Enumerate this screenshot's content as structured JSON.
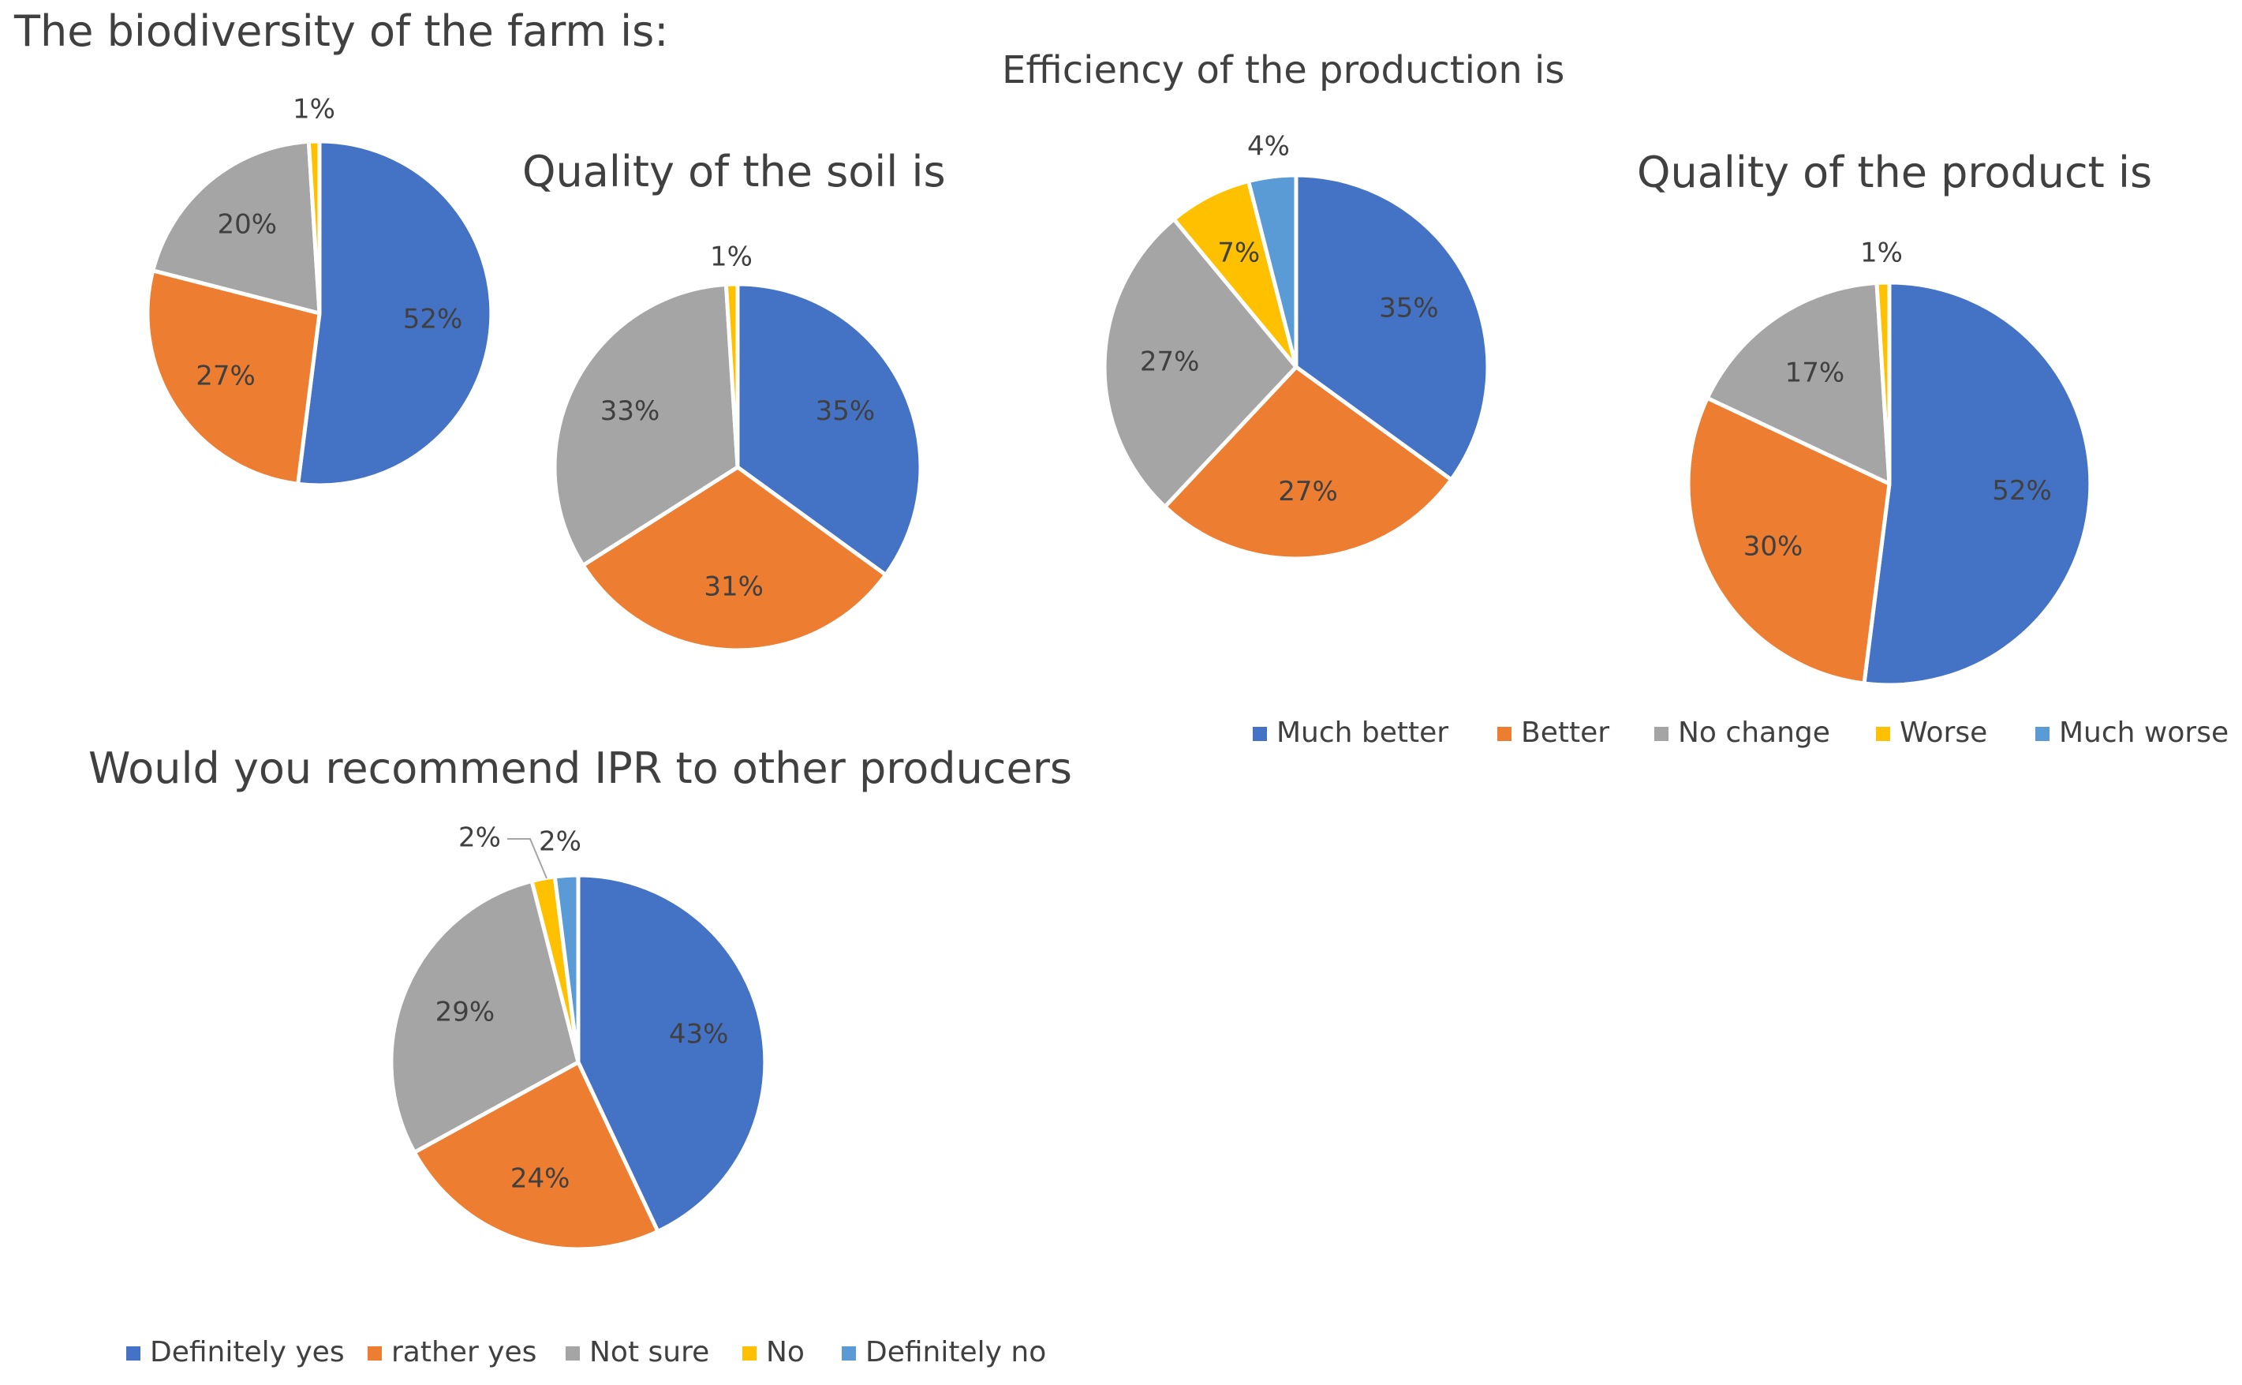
{
  "chart_data": [
    {
      "type": "pie",
      "title": "The biodiversity of the farm is:",
      "categories": [
        "Much better",
        "Better",
        "No change",
        "Worse",
        "Much worse"
      ],
      "values": [
        52,
        27,
        20,
        1,
        0
      ],
      "labels": [
        "52%",
        "27%",
        "20%",
        "1%",
        ""
      ]
    },
    {
      "type": "pie",
      "title": "Quality of the soil is",
      "categories": [
        "Much better",
        "Better",
        "No change",
        "Worse",
        "Much worse"
      ],
      "values": [
        35,
        31,
        33,
        1,
        0
      ],
      "labels": [
        "35%",
        "31%",
        "33%",
        "1%",
        ""
      ]
    },
    {
      "type": "pie",
      "title": "Efficiency of the production is",
      "categories": [
        "Much better",
        "Better",
        "No change",
        "Worse",
        "Much worse"
      ],
      "values": [
        35,
        27,
        27,
        7,
        4
      ],
      "labels": [
        "35%",
        "27%",
        "27%",
        "7%",
        "4%"
      ]
    },
    {
      "type": "pie",
      "title": "Quality of the product is",
      "categories": [
        "Much better",
        "Better",
        "No change",
        "Worse",
        "Much worse"
      ],
      "values": [
        52,
        30,
        17,
        1,
        0
      ],
      "labels": [
        "52%",
        "30%",
        "17%",
        "1%",
        ""
      ]
    },
    {
      "type": "pie",
      "title": "Would you recommend IPR to other producers",
      "categories": [
        "Definitely yes",
        "rather yes",
        "Not sure",
        "No",
        "Definitely no"
      ],
      "values": [
        43,
        24,
        29,
        2,
        2
      ],
      "labels": [
        "43%",
        "24%",
        "29%",
        "2%",
        "2%"
      ]
    }
  ],
  "legends": {
    "top": [
      "Much better",
      "Better",
      "No change",
      "Worse",
      "Much worse"
    ],
    "bottom": [
      "Definitely yes",
      "rather yes",
      "Not sure",
      "No",
      "Definitely no"
    ]
  },
  "colors": [
    "#4472C4",
    "#ED7D31",
    "#A5A5A5",
    "#FFC000",
    "#5B9BD5"
  ]
}
